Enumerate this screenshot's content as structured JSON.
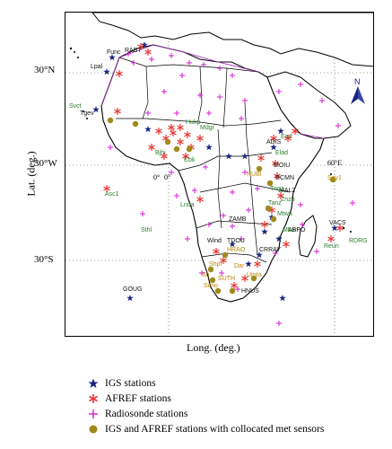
{
  "axes": {
    "y_label": "Lat. (deg.)",
    "x_label": "Long. (deg.)",
    "y_ticks": [
      "30°N",
      "30°W",
      "30°S"
    ],
    "inner_labels": [
      "0°",
      "0°",
      "60°E"
    ]
  },
  "legend": [
    {
      "symbol": "igs",
      "label": "IGS stations"
    },
    {
      "symbol": "afref",
      "label": "AFREF stations"
    },
    {
      "symbol": "radiosonde",
      "label": "Radiosonde stations"
    },
    {
      "symbol": "met",
      "label": "IGS and AFREF stations with collocated met sensors"
    }
  ],
  "colors": {
    "igs": "#1a237e",
    "afref": "#e53935",
    "radiosonde": "#d81bd8",
    "met": "#a08a1a",
    "label_green": "#2e7d32",
    "label_gold": "#b8860b",
    "label_black": "#111111",
    "border_purple": "#9c27b0"
  },
  "north_arrow": "N",
  "station_labels": [
    {
      "text": "Func",
      "c": "black"
    },
    {
      "text": "RABT",
      "c": "black"
    },
    {
      "text": "Lpal",
      "c": "black"
    },
    {
      "text": "Svct",
      "c": "green"
    },
    {
      "text": "Tgev",
      "c": "black"
    },
    {
      "text": "Hukp",
      "c": "green"
    },
    {
      "text": "Mdgr",
      "c": "green"
    },
    {
      "text": "Bjhi",
      "c": "green"
    },
    {
      "text": "Cbk",
      "c": "green"
    },
    {
      "text": "ADIS",
      "c": "black"
    },
    {
      "text": "Ead",
      "c": "green"
    },
    {
      "text": "Elad",
      "c": "green"
    },
    {
      "text": "MOIU",
      "c": "black"
    },
    {
      "text": "RCMN",
      "c": "black"
    },
    {
      "text": "MAL2",
      "c": "black"
    },
    {
      "text": "Znzb",
      "c": "green"
    },
    {
      "text": "Tanz",
      "c": "green"
    },
    {
      "text": "Sey1",
      "c": "gold"
    },
    {
      "text": "Mtwa",
      "c": "green"
    },
    {
      "text": "Asc1",
      "c": "green"
    },
    {
      "text": "Lnda",
      "c": "green"
    },
    {
      "text": "Sthl",
      "c": "green"
    },
    {
      "text": "ZAMB",
      "c": "black"
    },
    {
      "text": "ABPO",
      "c": "black"
    },
    {
      "text": "VACS",
      "c": "black"
    },
    {
      "text": "RDRG",
      "c": "green"
    },
    {
      "text": "Reun",
      "c": "green"
    },
    {
      "text": "Wind",
      "c": "black"
    },
    {
      "text": "TDOU",
      "c": "black"
    },
    {
      "text": "HRAO",
      "c": "gold"
    },
    {
      "text": "CRRAY",
      "c": "black"
    },
    {
      "text": "Shpr",
      "c": "gold"
    },
    {
      "text": "Su",
      "c": "gold"
    },
    {
      "text": "SUTH",
      "c": "gold"
    },
    {
      "text": "Umta",
      "c": "gold"
    },
    {
      "text": "Simo",
      "c": "gold"
    },
    {
      "text": "HNUS",
      "c": "black"
    },
    {
      "text": "GOUG",
      "c": "black"
    },
    {
      "text": "Mbar",
      "c": "green"
    },
    {
      "text": "NUBI",
      "c": "gold"
    },
    {
      "text": "Tnga",
      "c": "green"
    },
    {
      "text": "Dar",
      "c": "gold"
    }
  ]
}
